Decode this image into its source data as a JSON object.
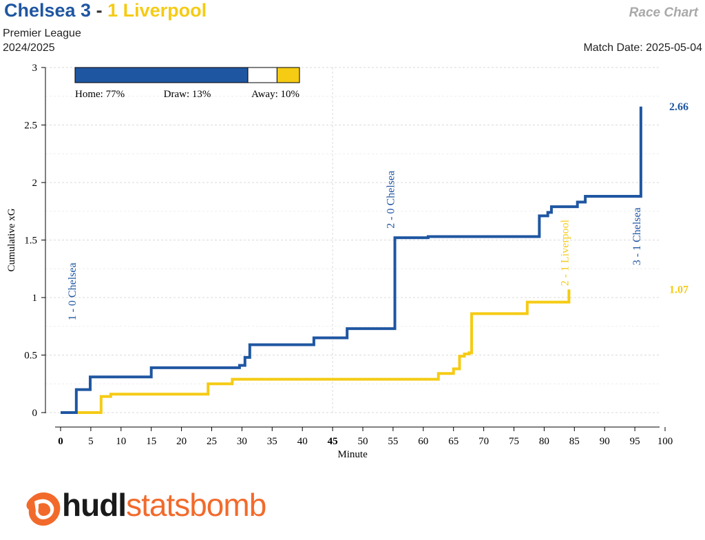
{
  "header": {
    "home_team_label": "Chelsea 3",
    "separator": "-",
    "away_team_label": "1 Liverpool",
    "competition": "Premier League",
    "season": "2024/2025",
    "chart_kind": "Race Chart",
    "match_date": "Match Date: 2025-05-04"
  },
  "logo": {
    "hudl": "hudl",
    "statsbomb": "statsbomb"
  },
  "colors": {
    "home": "#1F56A1",
    "away": "#F5CB14",
    "grid": "#DADADA",
    "axis": "#000000"
  },
  "chart_data": {
    "type": "line",
    "xlabel": "Minute",
    "ylabel": "Cumulative xG",
    "xlim": [
      0,
      100
    ],
    "ylim": [
      0,
      3
    ],
    "xticks": [
      0,
      5,
      10,
      15,
      20,
      25,
      30,
      35,
      40,
      45,
      50,
      55,
      60,
      65,
      70,
      75,
      80,
      85,
      90,
      95,
      100
    ],
    "xtick_bold": [
      0,
      45
    ],
    "yticks": [
      0,
      0.5,
      1,
      1.5,
      2,
      2.5,
      3
    ],
    "ytick_labels": [
      "0",
      "0.5",
      "1",
      "1.5",
      "2",
      "2.5",
      "3"
    ],
    "probability_bar": {
      "home_pct": 77,
      "draw_pct": 13,
      "away_pct": 10,
      "home_label": "Home: 77%",
      "draw_label": "Draw: 13%",
      "away_label": "Away: 10%"
    },
    "series": [
      {
        "team": "home",
        "final_label": "2.66",
        "steps": [
          [
            0,
            0
          ],
          [
            2.6,
            0.2
          ],
          [
            4.9,
            0.31
          ],
          [
            15.0,
            0.39
          ],
          [
            29.6,
            0.41
          ],
          [
            30.5,
            0.48
          ],
          [
            31.3,
            0.59
          ],
          [
            41.9,
            0.65
          ],
          [
            47.4,
            0.73
          ],
          [
            55.3,
            1.52
          ],
          [
            60.8,
            1.53
          ],
          [
            79.2,
            1.71
          ],
          [
            80.6,
            1.74
          ],
          [
            81.2,
            1.79
          ],
          [
            85.5,
            1.83
          ],
          [
            86.8,
            1.88
          ],
          [
            96.0,
            2.66
          ]
        ],
        "end_minute": 96.0
      },
      {
        "team": "away",
        "final_label": "1.07",
        "steps": [
          [
            0,
            0
          ],
          [
            6.7,
            0.14
          ],
          [
            8.3,
            0.16
          ],
          [
            24.4,
            0.25
          ],
          [
            28.4,
            0.29
          ],
          [
            62.5,
            0.34
          ],
          [
            65.0,
            0.38
          ],
          [
            66.0,
            0.49
          ],
          [
            66.8,
            0.51
          ],
          [
            67.6,
            0.52
          ],
          [
            68.0,
            0.86
          ],
          [
            77.2,
            0.96
          ],
          [
            84.1,
            1.07
          ]
        ],
        "end_minute": 84.1
      }
    ],
    "annotations": [
      {
        "text": "1 - 0 Chelsea",
        "x": 2.6,
        "team": "home"
      },
      {
        "text": "2 - 0 Chelsea",
        "x": 55.3,
        "team": "home"
      },
      {
        "text": "2 - 1 Liverpool",
        "x": 84.1,
        "team": "away"
      },
      {
        "text": "3 - 1 Chelsea",
        "x": 96.0,
        "team": "home"
      }
    ]
  }
}
